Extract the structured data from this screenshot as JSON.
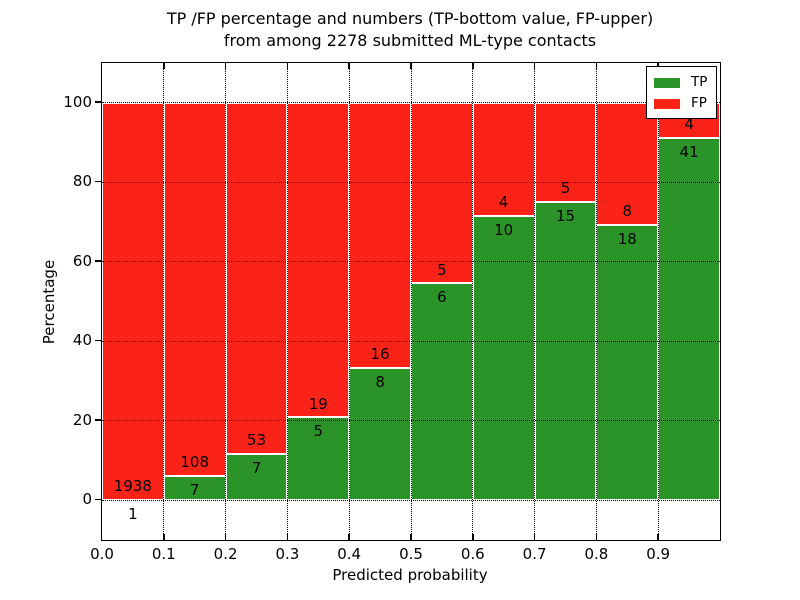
{
  "chart_data": {
    "type": "bar",
    "stacked": true,
    "normalized_to_percent": true,
    "title_line1": "TP /FP percentage and numbers (TP-bottom value, FP-upper)",
    "title_line2": "from among 2278 submitted ML-type contacts",
    "total_submitted": "2278",
    "xlabel": "Predicted probability",
    "ylabel": "Percentage",
    "x_tick_labels": [
      "0.0",
      "0.1",
      "0.2",
      "0.3",
      "0.4",
      "0.5",
      "0.6",
      "0.7",
      "0.8",
      "0.9"
    ],
    "y_ticks": [
      0,
      20,
      40,
      60,
      80,
      100
    ],
    "xlim": [
      0.0,
      1.0
    ],
    "ylim": [
      -10,
      110
    ],
    "bin_width": 0.1,
    "grid_style": "dotted",
    "axes_bg": "#ffffff",
    "bar_edge_color": "#ffffff",
    "series": [
      {
        "name": "TP",
        "color": "#2b9428",
        "counts": [
          1,
          7,
          7,
          5,
          8,
          6,
          10,
          15,
          18,
          41
        ]
      },
      {
        "name": "FP",
        "color": "#fb2318",
        "counts": [
          1938,
          108,
          53,
          19,
          16,
          5,
          4,
          5,
          8,
          4
        ]
      }
    ],
    "legend": {
      "position": "upper-right",
      "entries": [
        {
          "label": "TP",
          "color": "#2b9428"
        },
        {
          "label": "FP",
          "color": "#fb2318"
        }
      ]
    }
  }
}
